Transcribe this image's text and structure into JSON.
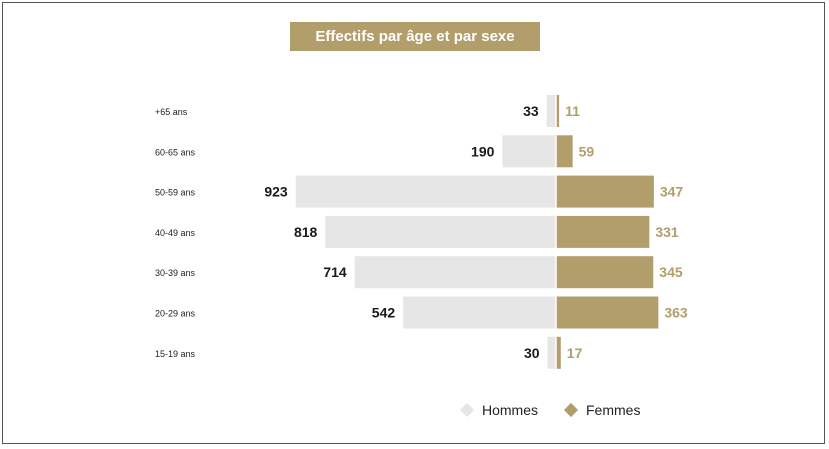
{
  "chart_data": {
    "type": "bar",
    "subtype": "population-pyramid",
    "title": "Effectifs par âge et par sexe",
    "categories": [
      "+65 ans",
      "60-65 ans",
      "50-59 ans",
      "40-49 ans",
      "30-39 ans",
      "20-29 ans",
      "15-19 ans"
    ],
    "series": [
      {
        "name": "Hommes",
        "values": [
          33,
          190,
          923,
          818,
          714,
          542,
          30
        ],
        "color": "#e6e6e6",
        "label_color": "#1a1a1a",
        "side": "left"
      },
      {
        "name": "Femmes",
        "values": [
          11,
          59,
          347,
          331,
          345,
          363,
          17
        ],
        "color": "#b29e6b",
        "label_color": "#b29e6b",
        "side": "right"
      }
    ],
    "legend_position": "bottom",
    "grid": false
  },
  "colors": {
    "title_background": "#b29e6b",
    "title_text": "#ffffff"
  }
}
